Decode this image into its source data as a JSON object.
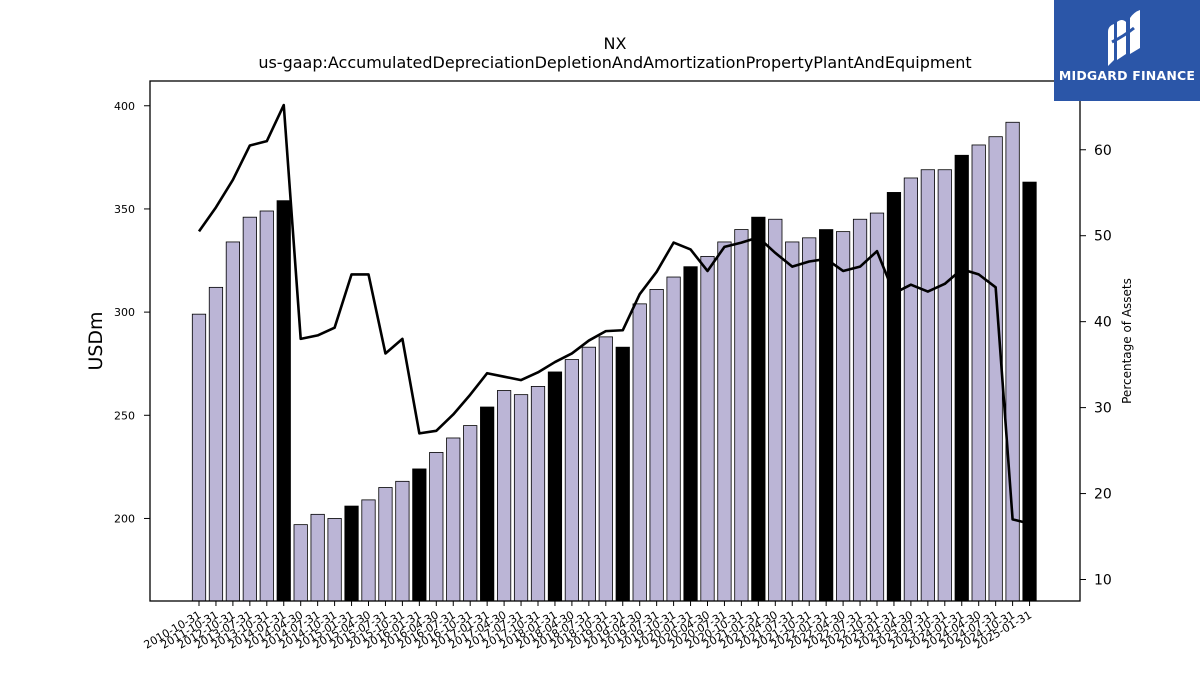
{
  "brand": {
    "name": "MIDGARD FINANCE",
    "bg_color": "#2b56a8"
  },
  "chart_data": {
    "type": "bar",
    "title": "NX",
    "subtitle": "us-gaap:AccumulatedDepreciationDepletionAndAmortizationPropertyPlantAndEquipment",
    "ylabel": "USDm",
    "y2label": "Percentage of Assets",
    "ylim": [
      160,
      412
    ],
    "y2lim": [
      7.5,
      68
    ],
    "yticks": [
      200,
      250,
      300,
      350,
      400
    ],
    "y2ticks": [
      10,
      20,
      30,
      40,
      50,
      60
    ],
    "bar_color": "#bbb5d6",
    "highlight_color": "#000000",
    "line_color": "#000000",
    "categories": [
      "2010-10-31",
      "2011-10-31",
      "2012-10-31",
      "2013-07-31",
      "2013-10-31",
      "2014-01-31",
      "2014-04-30",
      "2014-07-31",
      "2014-10-31",
      "2015-01-31",
      "2015-04-30",
      "2015-07-31",
      "2015-10-31",
      "2016-01-31",
      "2016-04-30",
      "2016-07-31",
      "2016-10-31",
      "2017-01-31",
      "2017-04-30",
      "2017-07-31",
      "2017-10-31",
      "2018-01-31",
      "2018-04-30",
      "2018-07-31",
      "2018-10-31",
      "2019-01-31",
      "2019-04-30",
      "2019-07-31",
      "2019-10-31",
      "2020-01-31",
      "2020-04-30",
      "2020-07-31",
      "2020-10-31",
      "2021-01-31",
      "2021-04-30",
      "2021-07-31",
      "2021-10-31",
      "2022-01-31",
      "2022-04-30",
      "2022-07-31",
      "2022-10-31",
      "2023-01-31",
      "2023-04-30",
      "2023-07-31",
      "2023-10-31",
      "2024-01-31",
      "2024-04-30",
      "2024-07-31",
      "2024-10-31",
      "2025-01-31"
    ],
    "series": [
      {
        "values": [
          299,
          312,
          334,
          346,
          349,
          354,
          197,
          202,
          200,
          206,
          209,
          215,
          218,
          224,
          232,
          239,
          245,
          254,
          262,
          260,
          264,
          271,
          277,
          283,
          288,
          283,
          304,
          311,
          317,
          322,
          327,
          334,
          340,
          346,
          345,
          334,
          336,
          340,
          339,
          345,
          348,
          358,
          365,
          369,
          369,
          376,
          381,
          385,
          392,
          363
        ],
        "highlight": [
          false,
          false,
          false,
          false,
          false,
          true,
          false,
          false,
          false,
          true,
          false,
          false,
          false,
          true,
          false,
          false,
          false,
          true,
          false,
          false,
          false,
          true,
          false,
          false,
          false,
          true,
          false,
          false,
          false,
          true,
          false,
          false,
          false,
          true,
          false,
          false,
          false,
          true,
          false,
          false,
          false,
          true,
          false,
          false,
          false,
          true,
          false,
          false,
          false,
          true
        ]
      },
      {
        "axis": "right",
        "type": "line",
        "values": [
          50.5,
          53.3,
          56.5,
          60.5,
          61.0,
          65.2,
          38.0,
          38.4,
          39.3,
          45.5,
          45.5,
          36.3,
          38.0,
          27.0,
          27.3,
          29.2,
          31.5,
          34.0,
          33.6,
          33.2,
          34.1,
          35.3,
          36.3,
          37.8,
          38.9,
          39.0,
          43.2,
          45.8,
          49.2,
          48.4,
          45.9,
          48.7,
          49.2,
          49.8,
          48.0,
          46.4,
          47.0,
          47.3,
          45.9,
          46.4,
          48.2,
          43.3,
          44.3,
          43.5,
          44.4,
          46.1,
          45.5,
          44.0,
          17.0,
          16.5
        ]
      }
    ]
  }
}
